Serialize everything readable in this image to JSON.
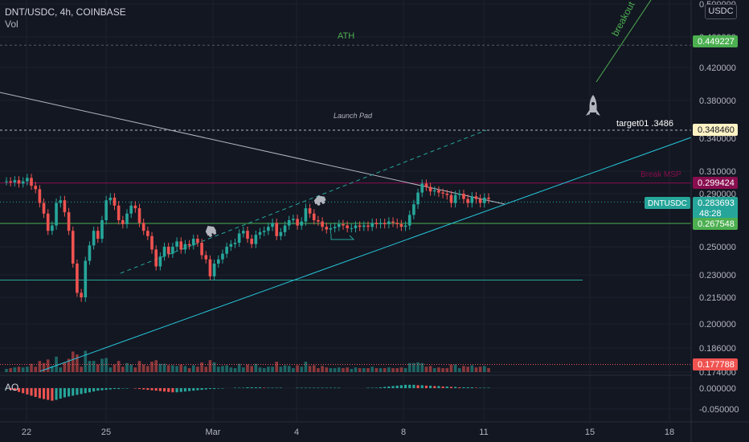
{
  "header": {
    "symbol": "DNT/USDC, 4h, COINBASE",
    "volume_label": "Vol",
    "ao_label": "AO",
    "currency": "USDC"
  },
  "annotations": {
    "ath": "ATH",
    "launch_pad": "Launch Pad",
    "breakout": "breakout",
    "target": "target01 .3486",
    "break_label": "Break",
    "break_value": "MSP"
  },
  "price_labels": {
    "ath": {
      "value": "0.449227",
      "color": "#4caf50"
    },
    "target": {
      "value": "0.348460",
      "color": "#fff3c4"
    },
    "resistance": {
      "value": "0.299424",
      "color": "#880e4f"
    },
    "current_symbol": "DNTUSDC",
    "current": {
      "value": "0.283693",
      "color": "#26a69a"
    },
    "countdown": "48:28",
    "support": {
      "value": "0.267548",
      "color": "#4caf50"
    },
    "bottom": {
      "value": "0.177788",
      "color": "#ef5350"
    }
  },
  "colors": {
    "up": "#26a69a",
    "down": "#ef5350",
    "background": "#131722",
    "grid": "#1e222d"
  },
  "chart_data": {
    "type": "candlestick",
    "title": "DNT/USDC, 4h, COINBASE",
    "y_axis_ticks": [
      "0.500000",
      "0.460000",
      "0.420000",
      "0.380000",
      "0.340000",
      "0.310000",
      "0.290000",
      "0.250000",
      "0.230000",
      "0.215000",
      "0.200000",
      "0.186000",
      "0.174000"
    ],
    "y_axis_scale": "log",
    "x_axis_ticks": [
      "22",
      "25",
      "Mar",
      "4",
      "8",
      "11",
      "15",
      "18"
    ],
    "horizontal_levels": [
      0.449227,
      0.34846,
      0.299424,
      0.283693,
      0.267548,
      0.2265,
      0.177788
    ],
    "ao_ticks": [
      "0.000000",
      "-0.050000"
    ],
    "candles_close": [
      0.301,
      0.3,
      0.302,
      0.299,
      0.301,
      0.304,
      0.297,
      0.294,
      0.283,
      0.275,
      0.262,
      0.266,
      0.283,
      0.285,
      0.276,
      0.262,
      0.238,
      0.218,
      0.215,
      0.24,
      0.251,
      0.262,
      0.256,
      0.27,
      0.285,
      0.287,
      0.281,
      0.27,
      0.267,
      0.275,
      0.281,
      0.279,
      0.268,
      0.262,
      0.258,
      0.248,
      0.236,
      0.243,
      0.25,
      0.245,
      0.25,
      0.254,
      0.248,
      0.252,
      0.251,
      0.256,
      0.253,
      0.244,
      0.241,
      0.229,
      0.238,
      0.241,
      0.245,
      0.25,
      0.252,
      0.253,
      0.26,
      0.262,
      0.256,
      0.252,
      0.259,
      0.261,
      0.262,
      0.265,
      0.268,
      0.258,
      0.261,
      0.266,
      0.27,
      0.271,
      0.266,
      0.269,
      0.279,
      0.275,
      0.27,
      0.269,
      0.265,
      0.263,
      0.264,
      0.265,
      0.267,
      0.266,
      0.264,
      0.264,
      0.266,
      0.265,
      0.266,
      0.265,
      0.268,
      0.267,
      0.268,
      0.267,
      0.269,
      0.268,
      0.267,
      0.265,
      0.266,
      0.274,
      0.282,
      0.291,
      0.299,
      0.296,
      0.292,
      0.293,
      0.291,
      0.29,
      0.289,
      0.283,
      0.289,
      0.29,
      0.286,
      0.283,
      0.288,
      0.286,
      0.283,
      0.287,
      0.286
    ],
    "ao_values": [
      -0.002,
      -0.004,
      -0.006,
      -0.009,
      -0.012,
      -0.015,
      -0.018,
      -0.021,
      -0.024,
      -0.026,
      -0.028,
      -0.03,
      -0.028,
      -0.025,
      -0.022,
      -0.02,
      -0.018,
      -0.016,
      -0.014,
      -0.012,
      -0.01,
      -0.008,
      -0.006,
      -0.005,
      -0.004,
      -0.003,
      -0.002,
      -0.002,
      -0.001,
      -0.001,
      0.0,
      -0.001,
      -0.002,
      -0.003,
      -0.004,
      -0.005,
      -0.006,
      -0.007,
      -0.008,
      -0.009,
      -0.01,
      -0.01,
      -0.009,
      -0.008,
      -0.007,
      -0.006,
      -0.005,
      -0.004,
      -0.003,
      -0.002,
      -0.002,
      -0.001,
      -0.001,
      0.0,
      0.0,
      0.001,
      0.001,
      0.001,
      0.002,
      0.002,
      0.002,
      0.002,
      0.001,
      0.001,
      0.001,
      0.001,
      0.001,
      0.0,
      0.0,
      0.0,
      0.001,
      0.001,
      0.001,
      0.001,
      0.001,
      0.001,
      0.001,
      0.001,
      0.001,
      0.001,
      0.001,
      0.0,
      0.0,
      0.0,
      0.0,
      0.0,
      0.0,
      0.001,
      0.001,
      0.001,
      0.002,
      0.003,
      0.004,
      0.005,
      0.006,
      0.007,
      0.008,
      0.008,
      0.008,
      0.007,
      0.007,
      0.006,
      0.006,
      0.005,
      0.005,
      0.004,
      0.004,
      0.003,
      0.003,
      0.002,
      0.002,
      0.002,
      0.002,
      0.001,
      0.001,
      0.001,
      0.001
    ]
  }
}
